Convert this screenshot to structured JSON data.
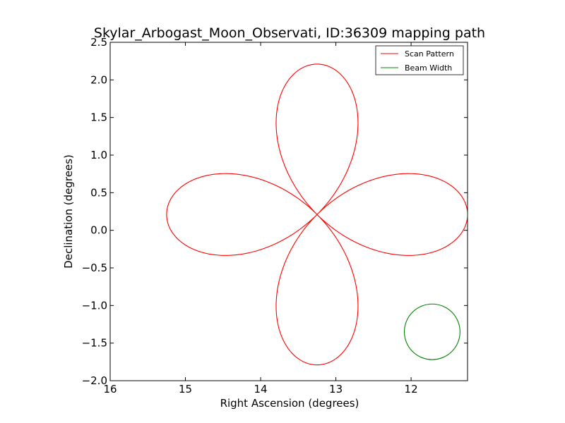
{
  "chart_data": {
    "type": "line",
    "title": "Skylar_Arbogast_Moon_Observati, ID:36309 mapping path",
    "xlabel": "Right Ascension (degrees)",
    "ylabel": "Declination (degrees)",
    "xlim": [
      16,
      11.25
    ],
    "ylim": [
      -2.0,
      2.5
    ],
    "x_ticks": [
      16,
      15,
      14,
      13,
      12
    ],
    "x_tick_labels": [
      "16",
      "15",
      "14",
      "13",
      "12"
    ],
    "y_ticks": [
      -2.0,
      -1.5,
      -1.0,
      -0.5,
      0.0,
      0.5,
      1.0,
      1.5,
      2.0,
      2.5
    ],
    "y_tick_labels": [
      "−2.0",
      "−1.5",
      "−1.0",
      "−0.5",
      "0.0",
      "0.5",
      "1.0",
      "1.5",
      "2.0",
      "2.5"
    ],
    "grid": false,
    "legend_position": "top-right",
    "series": [
      {
        "name": "Scan Pattern",
        "color": "#ff0000",
        "shape": "four-petal rose curve",
        "center": [
          13.25,
          0.21
        ],
        "petal_radius_ra": 2.0,
        "petal_radius_dec": 2.0
      },
      {
        "name": "Beam Width",
        "color": "#008000",
        "shape": "circle",
        "center": [
          11.72,
          -1.35
        ],
        "radius": 0.37
      }
    ]
  }
}
